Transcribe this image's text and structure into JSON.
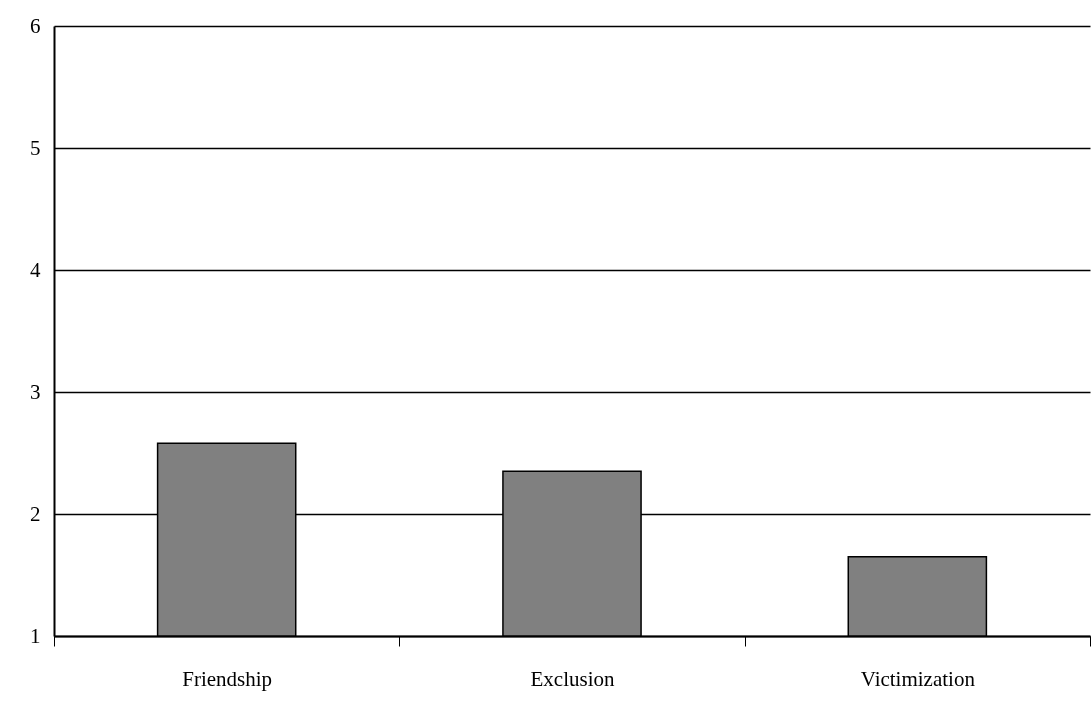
{
  "chart_data": {
    "type": "bar",
    "categories": [
      "Friendship",
      "Exclusion",
      "Victimization"
    ],
    "values": [
      2.58,
      2.35,
      1.65
    ],
    "color": "#808080",
    "ylim": [
      1,
      6
    ],
    "yticks": [
      1,
      2,
      3,
      4,
      5,
      6
    ],
    "grid": "y"
  }
}
